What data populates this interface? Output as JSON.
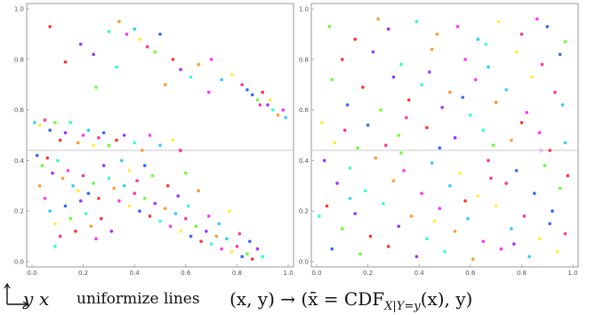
{
  "caption": {
    "axis_y": "y",
    "axis_x": "x",
    "text": "uniformize lines",
    "formula": "(x, y) → (x̄ = CDF",
    "formula_sub": "X|Y=y",
    "formula_end": "(x), y)"
  },
  "colors": {
    "palette": [
      "#ff3333",
      "#ff9933",
      "#ffee33",
      "#66ff33",
      "#33ffcc",
      "#33ccff",
      "#3366ff",
      "#9933ff",
      "#ff33ff",
      "#ff3399"
    ]
  },
  "chart_data": [
    {
      "type": "scatter",
      "title": "",
      "xlabel": "",
      "ylabel": "",
      "xlim": [
        0.0,
        1.0
      ],
      "ylim": [
        0.0,
        1.0
      ],
      "xticks": [
        "0.0",
        "0.2",
        "0.4",
        "0.6",
        "0.8",
        "1.0"
      ],
      "yticks": [
        "0.0",
        "0.2",
        "0.4",
        "0.6",
        "0.8",
        "1.0"
      ],
      "reference_line_y": 0.44,
      "points": [
        [
          0.07,
          0.93
        ],
        [
          0.19,
          0.86
        ],
        [
          0.3,
          0.91
        ],
        [
          0.34,
          0.95
        ],
        [
          0.37,
          0.9
        ],
        [
          0.4,
          0.92
        ],
        [
          0.42,
          0.88
        ],
        [
          0.45,
          0.85
        ],
        [
          0.5,
          0.9
        ],
        [
          0.48,
          0.83
        ],
        [
          0.55,
          0.8
        ],
        [
          0.58,
          0.76
        ],
        [
          0.62,
          0.73
        ],
        [
          0.65,
          0.78
        ],
        [
          0.7,
          0.8
        ],
        [
          0.74,
          0.72
        ],
        [
          0.78,
          0.74
        ],
        [
          0.82,
          0.7
        ],
        [
          0.86,
          0.66
        ],
        [
          0.88,
          0.64
        ],
        [
          0.9,
          0.67
        ],
        [
          0.92,
          0.62
        ],
        [
          0.94,
          0.6
        ],
        [
          0.96,
          0.58
        ],
        [
          0.98,
          0.6
        ],
        [
          0.99,
          0.57
        ],
        [
          0.93,
          0.64
        ],
        [
          0.89,
          0.62
        ],
        [
          0.84,
          0.68
        ],
        [
          0.25,
          0.69
        ],
        [
          0.13,
          0.79
        ],
        [
          0.24,
          0.82
        ],
        [
          0.33,
          0.77
        ],
        [
          0.52,
          0.7
        ],
        [
          0.69,
          0.67
        ],
        [
          0.01,
          0.55
        ],
        [
          0.03,
          0.54
        ],
        [
          0.05,
          0.56
        ],
        [
          0.07,
          0.52
        ],
        [
          0.09,
          0.55
        ],
        [
          0.11,
          0.48
        ],
        [
          0.13,
          0.51
        ],
        [
          0.15,
          0.55
        ],
        [
          0.18,
          0.47
        ],
        [
          0.2,
          0.5
        ],
        [
          0.22,
          0.52
        ],
        [
          0.24,
          0.46
        ],
        [
          0.26,
          0.49
        ],
        [
          0.28,
          0.51
        ],
        [
          0.3,
          0.46
        ],
        [
          0.33,
          0.48
        ],
        [
          0.36,
          0.5
        ],
        [
          0.4,
          0.47
        ],
        [
          0.43,
          0.44
        ],
        [
          0.46,
          0.5
        ],
        [
          0.5,
          0.46
        ],
        [
          0.55,
          0.48
        ],
        [
          0.58,
          0.44
        ],
        [
          0.02,
          0.42
        ],
        [
          0.04,
          0.38
        ],
        [
          0.06,
          0.41
        ],
        [
          0.08,
          0.35
        ],
        [
          0.1,
          0.4
        ],
        [
          0.12,
          0.33
        ],
        [
          0.14,
          0.36
        ],
        [
          0.16,
          0.3
        ],
        [
          0.18,
          0.28
        ],
        [
          0.2,
          0.34
        ],
        [
          0.22,
          0.27
        ],
        [
          0.24,
          0.31
        ],
        [
          0.26,
          0.25
        ],
        [
          0.28,
          0.38
        ],
        [
          0.3,
          0.33
        ],
        [
          0.32,
          0.29
        ],
        [
          0.34,
          0.24
        ],
        [
          0.36,
          0.3
        ],
        [
          0.38,
          0.22
        ],
        [
          0.4,
          0.27
        ],
        [
          0.42,
          0.2
        ],
        [
          0.44,
          0.25
        ],
        [
          0.46,
          0.18
        ],
        [
          0.48,
          0.23
        ],
        [
          0.5,
          0.16
        ],
        [
          0.52,
          0.21
        ],
        [
          0.54,
          0.14
        ],
        [
          0.56,
          0.19
        ],
        [
          0.58,
          0.12
        ],
        [
          0.6,
          0.17
        ],
        [
          0.62,
          0.1
        ],
        [
          0.64,
          0.14
        ],
        [
          0.66,
          0.08
        ],
        [
          0.68,
          0.12
        ],
        [
          0.7,
          0.07
        ],
        [
          0.72,
          0.1
        ],
        [
          0.74,
          0.05
        ],
        [
          0.76,
          0.09
        ],
        [
          0.78,
          0.04
        ],
        [
          0.8,
          0.06
        ],
        [
          0.82,
          0.02
        ],
        [
          0.84,
          0.03
        ],
        [
          0.86,
          0.01
        ],
        [
          0.88,
          0.05
        ],
        [
          0.9,
          0.02
        ],
        [
          0.03,
          0.3
        ],
        [
          0.05,
          0.25
        ],
        [
          0.07,
          0.2
        ],
        [
          0.09,
          0.15
        ],
        [
          0.11,
          0.1
        ],
        [
          0.13,
          0.22
        ],
        [
          0.15,
          0.17
        ],
        [
          0.17,
          0.12
        ],
        [
          0.19,
          0.24
        ],
        [
          0.21,
          0.19
        ],
        [
          0.23,
          0.14
        ],
        [
          0.25,
          0.09
        ],
        [
          0.35,
          0.4
        ],
        [
          0.38,
          0.36
        ],
        [
          0.41,
          0.32
        ],
        [
          0.44,
          0.38
        ],
        [
          0.47,
          0.34
        ],
        [
          0.53,
          0.3
        ],
        [
          0.57,
          0.26
        ],
        [
          0.61,
          0.22
        ],
        [
          0.65,
          0.28
        ],
        [
          0.69,
          0.18
        ],
        [
          0.73,
          0.15
        ],
        [
          0.77,
          0.2
        ],
        [
          0.81,
          0.11
        ],
        [
          0.85,
          0.08
        ],
        [
          0.6,
          0.35
        ],
        [
          0.27,
          0.17
        ],
        [
          0.31,
          0.12
        ],
        [
          0.09,
          0.06
        ]
      ]
    },
    {
      "type": "scatter",
      "title": "",
      "xlabel": "",
      "ylabel": "",
      "xlim": [
        0.0,
        1.0
      ],
      "ylim": [
        0.0,
        1.0
      ],
      "xticks": [
        "0.0",
        "0.2",
        "0.4",
        "0.6",
        "0.8",
        "1.0"
      ],
      "yticks": [
        "0.0",
        "0.2",
        "0.4",
        "0.6",
        "0.8",
        "1.0"
      ],
      "reference_line_y": 0.44,
      "points": [
        [
          0.05,
          0.93
        ],
        [
          0.15,
          0.88
        ],
        [
          0.28,
          0.92
        ],
        [
          0.39,
          0.95
        ],
        [
          0.47,
          0.9
        ],
        [
          0.55,
          0.93
        ],
        [
          0.63,
          0.88
        ],
        [
          0.71,
          0.95
        ],
        [
          0.8,
          0.9
        ],
        [
          0.9,
          0.93
        ],
        [
          0.97,
          0.87
        ],
        [
          0.1,
          0.8
        ],
        [
          0.22,
          0.83
        ],
        [
          0.33,
          0.78
        ],
        [
          0.45,
          0.84
        ],
        [
          0.58,
          0.8
        ],
        [
          0.67,
          0.77
        ],
        [
          0.78,
          0.83
        ],
        [
          0.88,
          0.78
        ],
        [
          0.95,
          0.82
        ],
        [
          0.06,
          0.72
        ],
        [
          0.18,
          0.69
        ],
        [
          0.3,
          0.73
        ],
        [
          0.41,
          0.7
        ],
        [
          0.52,
          0.67
        ],
        [
          0.62,
          0.72
        ],
        [
          0.74,
          0.68
        ],
        [
          0.84,
          0.73
        ],
        [
          0.93,
          0.67
        ],
        [
          0.12,
          0.62
        ],
        [
          0.25,
          0.6
        ],
        [
          0.36,
          0.64
        ],
        [
          0.49,
          0.61
        ],
        [
          0.6,
          0.58
        ],
        [
          0.7,
          0.63
        ],
        [
          0.82,
          0.59
        ],
        [
          0.96,
          0.62
        ],
        [
          0.02,
          0.55
        ],
        [
          0.11,
          0.52
        ],
        [
          0.2,
          0.54
        ],
        [
          0.32,
          0.5
        ],
        [
          0.43,
          0.53
        ],
        [
          0.54,
          0.49
        ],
        [
          0.65,
          0.52
        ],
        [
          0.76,
          0.48
        ],
        [
          0.87,
          0.51
        ],
        [
          0.97,
          0.47
        ],
        [
          0.07,
          0.47
        ],
        [
          0.27,
          0.46
        ],
        [
          0.48,
          0.45
        ],
        [
          0.69,
          0.46
        ],
        [
          0.91,
          0.44
        ],
        [
          0.03,
          0.4
        ],
        [
          0.13,
          0.37
        ],
        [
          0.23,
          0.41
        ],
        [
          0.34,
          0.36
        ],
        [
          0.45,
          0.39
        ],
        [
          0.56,
          0.35
        ],
        [
          0.67,
          0.4
        ],
        [
          0.78,
          0.36
        ],
        [
          0.89,
          0.38
        ],
        [
          0.98,
          0.34
        ],
        [
          0.08,
          0.31
        ],
        [
          0.19,
          0.28
        ],
        [
          0.3,
          0.32
        ],
        [
          0.41,
          0.27
        ],
        [
          0.52,
          0.3
        ],
        [
          0.63,
          0.26
        ],
        [
          0.74,
          0.31
        ],
        [
          0.85,
          0.27
        ],
        [
          0.95,
          0.29
        ],
        [
          0.04,
          0.22
        ],
        [
          0.15,
          0.19
        ],
        [
          0.26,
          0.23
        ],
        [
          0.37,
          0.18
        ],
        [
          0.48,
          0.21
        ],
        [
          0.59,
          0.17
        ],
        [
          0.7,
          0.22
        ],
        [
          0.81,
          0.18
        ],
        [
          0.92,
          0.2
        ],
        [
          0.1,
          0.13
        ],
        [
          0.21,
          0.1
        ],
        [
          0.32,
          0.14
        ],
        [
          0.43,
          0.09
        ],
        [
          0.54,
          0.12
        ],
        [
          0.65,
          0.08
        ],
        [
          0.76,
          0.13
        ],
        [
          0.87,
          0.09
        ],
        [
          0.97,
          0.11
        ],
        [
          0.06,
          0.05
        ],
        [
          0.17,
          0.03
        ],
        [
          0.28,
          0.06
        ],
        [
          0.39,
          0.02
        ],
        [
          0.5,
          0.04
        ],
        [
          0.61,
          0.01
        ],
        [
          0.72,
          0.05
        ],
        [
          0.83,
          0.02
        ],
        [
          0.94,
          0.04
        ],
        [
          0.35,
          0.57
        ],
        [
          0.57,
          0.65
        ],
        [
          0.16,
          0.45
        ],
        [
          0.8,
          0.55
        ],
        [
          0.44,
          0.75
        ],
        [
          0.66,
          0.86
        ],
        [
          0.24,
          0.96
        ],
        [
          0.86,
          0.96
        ],
        [
          0.13,
          0.25
        ],
        [
          0.46,
          0.16
        ],
        [
          0.68,
          0.33
        ],
        [
          0.91,
          0.15
        ],
        [
          0.33,
          0.43
        ],
        [
          0.58,
          0.24
        ],
        [
          0.77,
          0.07
        ],
        [
          0.01,
          0.18
        ]
      ]
    }
  ]
}
